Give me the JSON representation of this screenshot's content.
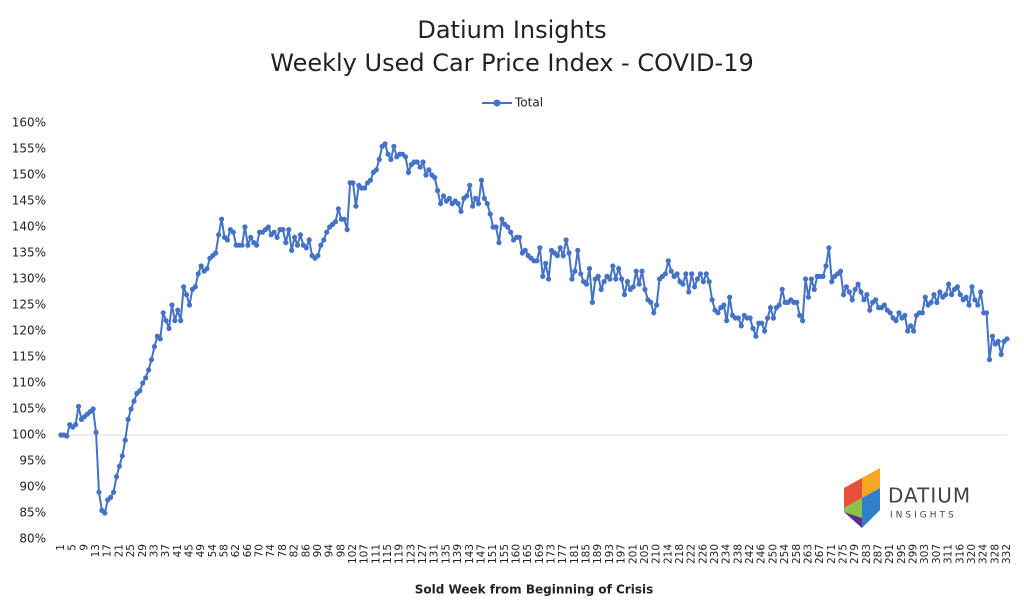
{
  "chart_data": {
    "type": "line",
    "title": "Datium Insights",
    "subtitle": "Weekly Used Car Price Index - COVID-19",
    "x_label": "Sold Week from Beginning of Crisis",
    "legend": "top",
    "x_axis_crossing": 100,
    "ylim": [
      80,
      160
    ],
    "yticks": [
      {
        "value": 80,
        "label": "80%"
      },
      {
        "value": 85,
        "label": "85%"
      },
      {
        "value": 90,
        "label": "90%"
      },
      {
        "value": 95,
        "label": "95%"
      },
      {
        "value": 100,
        "label": "100%"
      },
      {
        "value": 105,
        "label": "105%"
      },
      {
        "value": 110,
        "label": "110%"
      },
      {
        "value": 115,
        "label": "115%"
      },
      {
        "value": 120,
        "label": "120%"
      },
      {
        "value": 125,
        "label": "125%"
      },
      {
        "value": 130,
        "label": "130%"
      },
      {
        "value": 135,
        "label": "135%"
      },
      {
        "value": 140,
        "label": "140%"
      },
      {
        "value": 145,
        "label": "145%"
      },
      {
        "value": 150,
        "label": "150%"
      },
      {
        "value": 155,
        "label": "155%"
      },
      {
        "value": 160,
        "label": "160%"
      }
    ],
    "logo": {
      "name": "DATIUM",
      "tagline": "INSIGHTS"
    },
    "categories": [
      "1",
      null,
      null,
      null,
      "5",
      null,
      null,
      null,
      "9",
      null,
      null,
      null,
      "13",
      null,
      null,
      null,
      "17",
      null,
      null,
      null,
      "21",
      null,
      null,
      null,
      "25",
      null,
      null,
      null,
      "29",
      null,
      null,
      null,
      "33",
      null,
      null,
      null,
      "37",
      null,
      null,
      null,
      "41",
      null,
      null,
      null,
      "45",
      null,
      null,
      null,
      "49",
      null,
      null,
      null,
      "54",
      null,
      null,
      null,
      "58",
      null,
      null,
      null,
      "62",
      null,
      null,
      null,
      "66",
      null,
      null,
      null,
      "70",
      null,
      null,
      null,
      "74",
      null,
      null,
      null,
      "78",
      null,
      null,
      null,
      "82",
      null,
      null,
      null,
      "86",
      null,
      null,
      null,
      "90",
      null,
      null,
      null,
      "94",
      null,
      null,
      null,
      "98",
      null,
      null,
      null,
      "102",
      null,
      null,
      null,
      "107",
      null,
      null,
      null,
      "111",
      null,
      null,
      null,
      "115",
      null,
      null,
      null,
      "119",
      null,
      null,
      null,
      "123",
      null,
      null,
      null,
      "127",
      null,
      null,
      null,
      "131",
      null,
      null,
      null,
      "135",
      null,
      null,
      null,
      "139",
      null,
      null,
      null,
      "143",
      null,
      null,
      null,
      "147",
      null,
      null,
      null,
      "151",
      null,
      null,
      null,
      "155",
      null,
      null,
      null,
      "160",
      null,
      null,
      null,
      "165",
      null,
      null,
      null,
      "169",
      null,
      null,
      null,
      "173",
      null,
      null,
      null,
      "177",
      null,
      null,
      null,
      "181",
      null,
      null,
      null,
      "185",
      null,
      null,
      null,
      "189",
      null,
      null,
      null,
      "193",
      null,
      null,
      null,
      "197",
      null,
      null,
      null,
      "201",
      null,
      null,
      null,
      "205",
      null,
      null,
      null,
      "210",
      null,
      null,
      null,
      "214",
      null,
      null,
      null,
      "218",
      null,
      null,
      null,
      "222",
      null,
      null,
      null,
      "226",
      null,
      null,
      null,
      "230",
      null,
      null,
      null,
      "234",
      null,
      null,
      null,
      "238",
      null,
      null,
      null,
      "242",
      null,
      null,
      null,
      "246",
      null,
      null,
      null,
      "250",
      null,
      null,
      null,
      "254",
      null,
      null,
      null,
      "258",
      null,
      null,
      null,
      "263",
      null,
      null,
      null,
      "267",
      null,
      null,
      null,
      "271",
      null,
      null,
      null,
      "275",
      null,
      null,
      null,
      "279",
      null,
      null,
      null,
      "283",
      null,
      null,
      null,
      "287",
      null,
      null,
      null,
      "291",
      null,
      null,
      null,
      "295",
      null,
      null,
      null,
      "299",
      null,
      null,
      null,
      "303",
      null,
      null,
      null,
      "307",
      null,
      null,
      null,
      "311",
      null,
      null,
      null,
      "316",
      null,
      null,
      null,
      "320",
      null,
      null,
      null,
      "324",
      null,
      null,
      null,
      "328",
      null,
      null,
      null,
      "332"
    ],
    "series": [
      {
        "name": "Total",
        "color": "#4472c4",
        "values": [
          100,
          100,
          99.8,
          102,
          101.5,
          102,
          105.5,
          103,
          103.5,
          104,
          104.5,
          105,
          100.5,
          89,
          85.5,
          85,
          87.5,
          88,
          89,
          92,
          94,
          96,
          99,
          103,
          105,
          106.5,
          108,
          108.5,
          110,
          111,
          112.5,
          114.5,
          117,
          119,
          118.5,
          123.5,
          122,
          120.5,
          125,
          122,
          124,
          122,
          128.5,
          127,
          125,
          128,
          128.5,
          131,
          132.5,
          131.5,
          132,
          134,
          134.5,
          135,
          138.5,
          141.5,
          138,
          137.5,
          139.5,
          139,
          136.5,
          136.5,
          136.5,
          140,
          136.5,
          138,
          137,
          136.5,
          139,
          139,
          139.5,
          140,
          138.5,
          139,
          138,
          139.5,
          139.5,
          137,
          139.5,
          135.5,
          138,
          136.5,
          138.5,
          136.5,
          136,
          137.5,
          134.5,
          134,
          134.5,
          136.5,
          137.5,
          139,
          140,
          140.5,
          141,
          143.5,
          141.5,
          141.5,
          139.5,
          148.5,
          148.5,
          144,
          148,
          147.5,
          147.5,
          148.5,
          149,
          150.5,
          151,
          153,
          155.5,
          156,
          154,
          153,
          155.5,
          153.5,
          154,
          154,
          153.5,
          150.5,
          152,
          152.5,
          152.5,
          151.5,
          152.5,
          150,
          151,
          150,
          149.5,
          147,
          144.5,
          146,
          145,
          145.5,
          144.5,
          145,
          144.5,
          143,
          145.5,
          146,
          148,
          144,
          145.5,
          144.5,
          149,
          145.5,
          144.5,
          142.5,
          140,
          140,
          137,
          141.5,
          140.5,
          140,
          139,
          137.5,
          138,
          138,
          135,
          135.5,
          134.5,
          134,
          133.5,
          133.5,
          136,
          130.5,
          133,
          130,
          135.5,
          135,
          134.5,
          136,
          134.5,
          137.5,
          135,
          130,
          131.5,
          135.5,
          131,
          129.5,
          129,
          132,
          125.5,
          130,
          130.5,
          128,
          129.5,
          130.5,
          130,
          132.5,
          130,
          132,
          130,
          127,
          129.5,
          128,
          128.5,
          131.5,
          129,
          131.5,
          128,
          126,
          125.5,
          123.5,
          125,
          130,
          130.5,
          131,
          133.5,
          131.5,
          130.5,
          131,
          129.5,
          129,
          131,
          127.5,
          131,
          128.5,
          130,
          131,
          129.5,
          131,
          129.5,
          126,
          124,
          123.5,
          124.5,
          125,
          122,
          126.5,
          123,
          122.5,
          122.5,
          121,
          123,
          122.5,
          122.5,
          120.5,
          119,
          121.5,
          121.5,
          120,
          122.5,
          124.5,
          122.5,
          124.5,
          125,
          128,
          125.5,
          125.5,
          126,
          125.5,
          125.5,
          123,
          122,
          130,
          126.5,
          130,
          128,
          130.5,
          130.5,
          130.5,
          132.5,
          136,
          129.5,
          130.5,
          131,
          131.5,
          127,
          128.5,
          127.5,
          126,
          128,
          129,
          127.5,
          126,
          127,
          124,
          125.5,
          126,
          124.5,
          124.5,
          125,
          124,
          123.5,
          122.5,
          122,
          123.5,
          122.5,
          123,
          120,
          121,
          120,
          123,
          123.5,
          123.5,
          126.5,
          125,
          125.5,
          127,
          125.5,
          127.5,
          126.5,
          127,
          129,
          127,
          128,
          128.5,
          127,
          126,
          126.5,
          125,
          128.5,
          126,
          125,
          127.5,
          123.5,
          123.5,
          114.5,
          119,
          117.5,
          118,
          115.5,
          118,
          118.5
        ]
      }
    ]
  }
}
